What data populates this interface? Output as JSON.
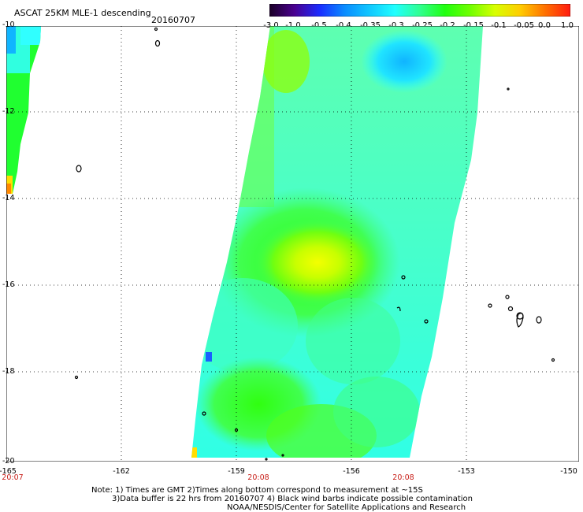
{
  "header": {
    "title": "ASCAT 25KM MLE-1 descending",
    "date": "20160707"
  },
  "colorbar": {
    "labels": [
      "-3.0",
      "-1.0",
      "-0.5",
      "-0.4",
      "-0.35",
      "-0.3",
      "-0.25",
      "-0.2",
      "-0.15",
      "-0.1",
      "-0.05",
      "0.0",
      "1.0"
    ],
    "colors": [
      "#1a0026",
      "#4a0090",
      "#1a2cff",
      "#0a8cff",
      "#10c8ff",
      "#20ffff",
      "#30ff90",
      "#20ff10",
      "#70ff00",
      "#d8ff00",
      "#ffcc00",
      "#ff7000",
      "#ff1a10"
    ]
  },
  "axes": {
    "lat_labels": [
      "-10",
      "-12",
      "-14",
      "-16",
      "-18",
      "-20"
    ],
    "lon_labels": [
      "-165",
      "-162",
      "-159",
      "-156",
      "-153",
      "-150"
    ],
    "grid": true
  },
  "times": [
    "20:07",
    "20:08",
    "20:08"
  ],
  "notes": {
    "line1": "Note: 1) Times are GMT 2)Times along bottom correspond to measurement at ~15S",
    "line2": "3)Data buffer is 22 hrs from 20160707 4) Black wind barbs indicate possible contamination",
    "line3": "NOAA/NESDIS/Center for Satellite Applications and Research"
  }
}
